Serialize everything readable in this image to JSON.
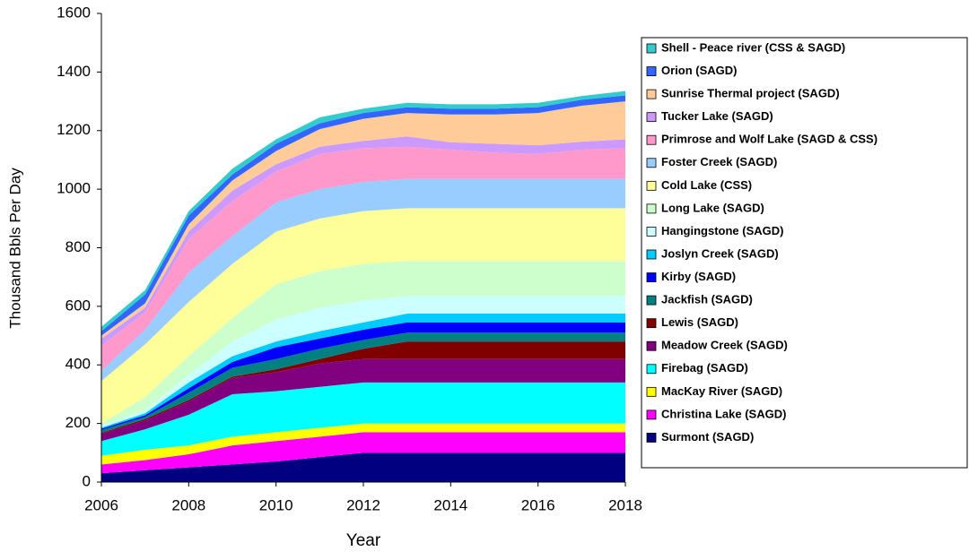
{
  "chart_data": {
    "type": "stacked_area",
    "x_label": "Year",
    "y_label": "Thousand Bbls Per Day",
    "x": [
      2006,
      2007,
      2008,
      2009,
      2010,
      2011,
      2012,
      2013,
      2014,
      2015,
      2016,
      2017,
      2018
    ],
    "xlim": [
      2006,
      2018
    ],
    "xticks": [
      2006,
      2008,
      2010,
      2012,
      2014,
      2016,
      2018
    ],
    "ylim": [
      0,
      1600
    ],
    "yticks": [
      0,
      200,
      400,
      600,
      800,
      1000,
      1200,
      1400,
      1600
    ],
    "legend": "right",
    "series": [
      {
        "name": "Surmont (SAGD)",
        "color": "#000080",
        "values": [
          30,
          40,
          50,
          60,
          70,
          85,
          100,
          100,
          100,
          100,
          100,
          100,
          100
        ]
      },
      {
        "name": "Christina Lake (SAGD)",
        "color": "#ff00ff",
        "values": [
          30,
          35,
          45,
          65,
          70,
          70,
          70,
          70,
          70,
          70,
          70,
          70,
          70
        ]
      },
      {
        "name": "MacKay River (SAGD)",
        "color": "#ffff00",
        "values": [
          30,
          35,
          30,
          30,
          30,
          30,
          30,
          30,
          30,
          30,
          30,
          30,
          30
        ]
      },
      {
        "name": "Firebag (SAGD)",
        "color": "#00ffff",
        "values": [
          50,
          70,
          105,
          145,
          140,
          140,
          140,
          140,
          140,
          140,
          140,
          140,
          140
        ]
      },
      {
        "name": "Meadow Creek (SAGD)",
        "color": "#800080",
        "values": [
          25,
          30,
          45,
          55,
          65,
          80,
          80,
          80,
          80,
          80,
          80,
          80,
          80
        ]
      },
      {
        "name": "Lewis (SAGD)",
        "color": "#800000",
        "values": [
          3,
          5,
          5,
          5,
          10,
          15,
          35,
          60,
          60,
          60,
          60,
          60,
          60
        ]
      },
      {
        "name": "Jackfish (SAGD)",
        "color": "#008080",
        "values": [
          10,
          7,
          25,
          30,
          35,
          35,
          30,
          30,
          30,
          30,
          30,
          30,
          30
        ]
      },
      {
        "name": "Kirby (SAGD)",
        "color": "#0000ff",
        "values": [
          4,
          6,
          15,
          20,
          40,
          35,
          35,
          35,
          35,
          35,
          35,
          35,
          35
        ]
      },
      {
        "name": "Joslyn Creek (SAGD)",
        "color": "#00ccff",
        "values": [
          4,
          7,
          20,
          20,
          20,
          25,
          25,
          30,
          30,
          30,
          30,
          30,
          30
        ]
      },
      {
        "name": "Hangingstone (SAGD)",
        "color": "#ccffff",
        "values": [
          6,
          10,
          25,
          50,
          75,
          80,
          75,
          60,
          60,
          60,
          60,
          60,
          60
        ]
      },
      {
        "name": "Long Lake (SAGD)",
        "color": "#ccffcc",
        "values": [
          8,
          45,
          65,
          80,
          120,
          125,
          125,
          120,
          120,
          120,
          120,
          120,
          120
        ]
      },
      {
        "name": "Cold Lake (CSS)",
        "color": "#ffff99",
        "values": [
          145,
          180,
          185,
          185,
          180,
          180,
          180,
          180,
          180,
          180,
          180,
          180,
          180
        ]
      },
      {
        "name": "Foster Creek (SAGD)",
        "color": "#99ccff",
        "values": [
          35,
          50,
          100,
          95,
          100,
          100,
          100,
          100,
          100,
          100,
          100,
          100,
          100
        ]
      },
      {
        "name": "Primrose and Wolf Lake (SAGD & CSS)",
        "color": "#ff99cc",
        "values": [
          85,
          60,
          115,
          120,
          105,
          120,
          115,
          110,
          100,
          90,
          85,
          100,
          105
        ]
      },
      {
        "name": "Tucker Lake (SAGD)",
        "color": "#cc99ff",
        "values": [
          25,
          15,
          25,
          35,
          25,
          25,
          25,
          35,
          25,
          30,
          30,
          27,
          30
        ]
      },
      {
        "name": "Sunrise Thermal project (SAGD)",
        "color": "#ffcc99",
        "values": [
          10,
          15,
          25,
          35,
          45,
          60,
          75,
          80,
          95,
          100,
          110,
          123,
          130
        ]
      },
      {
        "name": "Orion (SAGD)",
        "color": "#3366ff",
        "values": [
          15,
          30,
          30,
          20,
          25,
          20,
          20,
          20,
          20,
          20,
          20,
          20,
          20
        ]
      },
      {
        "name": "Shell - Peace river (CSS & SAGD)",
        "color": "#33cccc",
        "values": [
          15,
          15,
          15,
          20,
          15,
          20,
          15,
          15,
          15,
          15,
          15,
          13,
          15
        ]
      }
    ]
  }
}
